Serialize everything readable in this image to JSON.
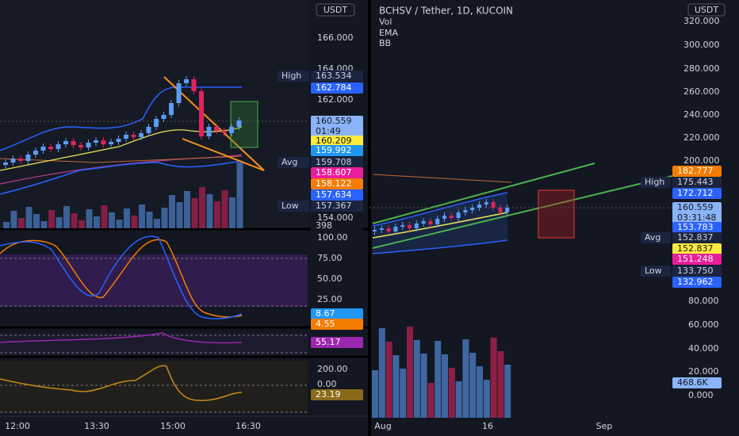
{
  "currency": "USDT",
  "left": {
    "price_axis": [
      "166.000",
      "164.000",
      "162.000",
      "154.000"
    ],
    "badges": [
      {
        "label": "High",
        "value": "163.534"
      },
      {
        "value": "162.784"
      },
      {
        "value": "160.559",
        "timer": "01:49"
      },
      {
        "value": "160.209"
      },
      {
        "value": "159.992"
      },
      {
        "label": "Avg",
        "value": "159.708"
      },
      {
        "value": "158.607"
      },
      {
        "value": "158.122"
      },
      {
        "value": "157.634"
      },
      {
        "label": "Low",
        "value": "157.367"
      },
      {
        "value": "398"
      }
    ],
    "stoch_axis": [
      "100.00",
      "75.00",
      "50.00",
      "25.00"
    ],
    "stoch_badges": [
      "8.67",
      "4.55"
    ],
    "rsi_badges": [
      "55.17"
    ],
    "cci_axis": [
      "200.00",
      "0.00"
    ],
    "cci_badges": [
      "23.19"
    ],
    "time_axis": [
      "12:00",
      "13:30",
      "15:00",
      "16:30"
    ]
  },
  "right": {
    "title": "BCHSV / Tether, 1D, KUCOIN",
    "indicators": [
      "Vol",
      "EMA",
      "BB"
    ],
    "price_axis": [
      "320.000",
      "300.000",
      "280.000",
      "260.000",
      "240.000",
      "220.000",
      "200.000"
    ],
    "volume_axis": [
      "80.000",
      "60.000",
      "40.000",
      "20.000",
      "0.000"
    ],
    "badges": [
      {
        "value": "182.777"
      },
      {
        "label": "High",
        "value": "175.443"
      },
      {
        "value": "172.712"
      },
      {
        "value": "160.559",
        "timer": "03:31:48"
      },
      {
        "value": "153.783"
      },
      {
        "label": "Avg",
        "value": "152.837"
      },
      {
        "value": "152.837"
      },
      {
        "value": "151.248"
      },
      {
        "label": "Low",
        "value": "133.750"
      },
      {
        "value": "132.962"
      },
      {
        "value": "468.6K"
      }
    ],
    "time_axis": [
      "Aug",
      "16",
      "Sep"
    ]
  }
}
